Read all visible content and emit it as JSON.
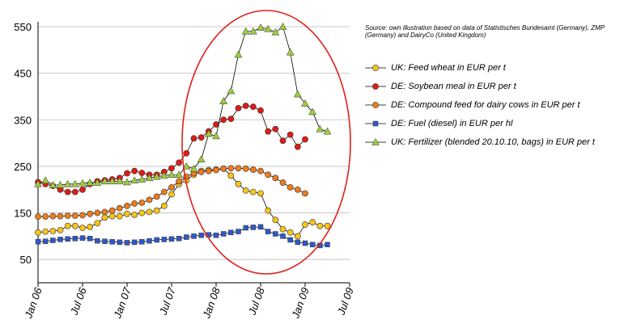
{
  "source_note": "Source: own illustration based on data of Statistisches Bundesamt (Germany), ZMP (Germany) and DairyCo (United Kingdom)",
  "colors": {
    "uk_feed_wheat": "#f5c518",
    "de_soybean_meal": "#e01b14",
    "de_compound_feed": "#ee7b1c",
    "de_fuel": "#2e58c8",
    "uk_fertilizer": "#9ccc3c",
    "highlight_ellipse": "#e0201a"
  },
  "chart_data": {
    "type": "line",
    "xlim": [
      "Jan 06",
      "Jul 09"
    ],
    "x_tick_labels": [
      "Jan 06",
      "Jul 06",
      "Jan 07",
      "Jul 07",
      "Jan 08",
      "Jul 08",
      "Jan 09",
      "Jul 09"
    ],
    "ylim": [
      0,
      550
    ],
    "y_tick_labels": [
      "50",
      "150",
      "250",
      "350",
      "450",
      "550"
    ],
    "y_ticks": [
      50,
      150,
      250,
      350,
      450,
      550
    ],
    "grid": "horizontal",
    "legend_position": "right",
    "x_month_unit": "months from Jan 06",
    "series": [
      {
        "name": "UK: Feed wheat in EUR per t",
        "marker": "circle",
        "color_key": "uk_feed_wheat",
        "x_months": [
          0,
          1,
          2,
          3,
          4,
          5,
          6,
          7,
          8,
          9,
          10,
          11,
          12,
          13,
          14,
          15,
          16,
          17,
          18,
          19,
          20,
          21,
          22,
          23,
          24,
          25,
          26,
          27,
          28,
          29,
          30,
          31,
          32,
          33,
          34,
          35,
          36,
          37,
          38,
          39
        ],
        "values": [
          108,
          110,
          111,
          113,
          122,
          122,
          118,
          120,
          128,
          140,
          143,
          143,
          148,
          146,
          150,
          152,
          155,
          165,
          190,
          212,
          220,
          232,
          240,
          242,
          243,
          245,
          230,
          212,
          198,
          195,
          192,
          155,
          135,
          115,
          108,
          100,
          125,
          130,
          122,
          122
        ]
      },
      {
        "name": "DE: Soybean meal in EUR per t",
        "marker": "circle",
        "color_key": "de_soybean_meal",
        "x_months": [
          0,
          1,
          2,
          3,
          4,
          5,
          6,
          7,
          8,
          9,
          10,
          11,
          12,
          13,
          14,
          15,
          16,
          17,
          18,
          19,
          20,
          21,
          22,
          23,
          24,
          25,
          26,
          27,
          28,
          29,
          30,
          31,
          32,
          33,
          34,
          35,
          36
        ],
        "values": [
          216,
          212,
          208,
          200,
          195,
          195,
          200,
          212,
          218,
          220,
          222,
          225,
          235,
          240,
          236,
          232,
          232,
          238,
          246,
          258,
          278,
          310,
          312,
          325,
          340,
          350,
          352,
          375,
          380,
          378,
          370,
          325,
          330,
          305,
          318,
          292,
          308
        ]
      },
      {
        "name": "DE: Compound feed for dairy cows in EUR per t",
        "marker": "circle",
        "color_key": "de_compound_feed",
        "x_months": [
          0,
          1,
          2,
          3,
          4,
          5,
          6,
          7,
          8,
          9,
          10,
          11,
          12,
          13,
          14,
          15,
          16,
          17,
          18,
          19,
          20,
          21,
          22,
          23,
          24,
          25,
          26,
          27,
          28,
          29,
          30,
          31,
          32,
          33,
          34,
          35,
          36
        ],
        "values": [
          142,
          142,
          143,
          143,
          144,
          144,
          145,
          148,
          150,
          152,
          155,
          160,
          165,
          170,
          172,
          178,
          185,
          195,
          205,
          218,
          228,
          235,
          238,
          240,
          242,
          245,
          246,
          246,
          245,
          243,
          240,
          232,
          225,
          215,
          205,
          200,
          192
        ]
      },
      {
        "name": "DE: Fuel (diesel) in EUR per hl",
        "marker": "square",
        "color_key": "de_fuel",
        "x_months": [
          0,
          1,
          2,
          3,
          4,
          5,
          6,
          7,
          8,
          9,
          10,
          11,
          12,
          13,
          14,
          15,
          16,
          17,
          18,
          19,
          20,
          21,
          22,
          23,
          24,
          25,
          26,
          27,
          28,
          29,
          30,
          31,
          32,
          33,
          34,
          35,
          36,
          37,
          38,
          39
        ],
        "values": [
          88,
          89,
          91,
          93,
          94,
          95,
          96,
          95,
          90,
          89,
          88,
          87,
          86,
          87,
          88,
          90,
          92,
          93,
          94,
          95,
          98,
          100,
          102,
          103,
          102,
          105,
          108,
          110,
          118,
          119,
          120,
          110,
          105,
          100,
          92,
          87,
          85,
          82,
          80,
          82
        ]
      },
      {
        "name": "UK: Fertilizer (blended 20.10.10, bags) in EUR per t",
        "marker": "triangle",
        "color_key": "uk_fertilizer",
        "x_months": [
          0,
          1,
          2,
          3,
          4,
          5,
          6,
          7,
          8,
          9,
          10,
          11,
          12,
          13,
          14,
          15,
          16,
          17,
          18,
          19,
          20,
          21,
          22,
          23,
          24,
          25,
          26,
          27,
          28,
          29,
          30,
          31,
          32,
          33,
          34,
          35,
          36,
          37,
          38,
          39
        ],
        "values": [
          212,
          220,
          210,
          210,
          212,
          212,
          214,
          215,
          215,
          218,
          218,
          218,
          216,
          220,
          222,
          225,
          228,
          230,
          232,
          232,
          250,
          245,
          265,
          320,
          315,
          390,
          412,
          490,
          540,
          540,
          548,
          545,
          538,
          550,
          495,
          405,
          385,
          367,
          330,
          325
        ]
      }
    ]
  },
  "annotation": {
    "shape": "ellipse",
    "description_key": "highlight_ellipse"
  }
}
